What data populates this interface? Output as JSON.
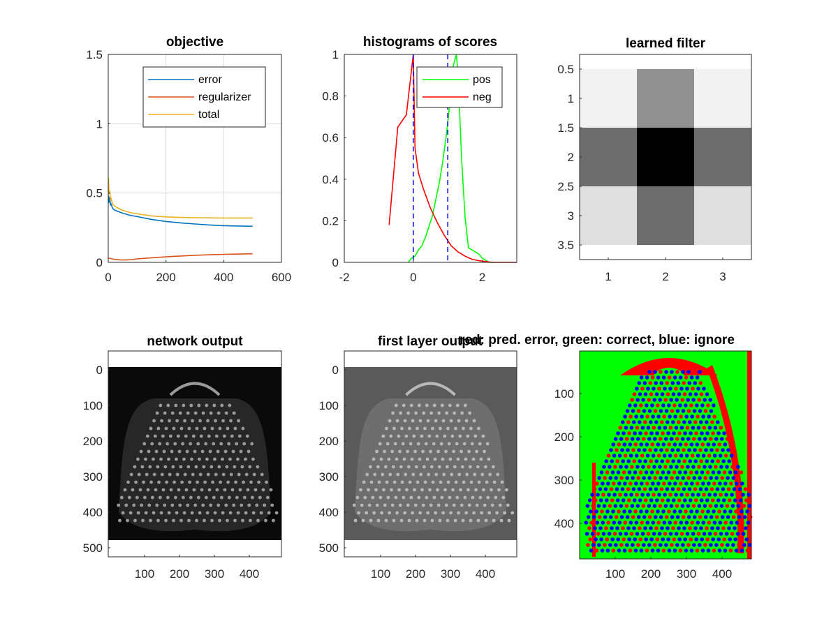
{
  "colors": {
    "error": "#0072BD",
    "regularizer": "#D95319",
    "total": "#EDB120",
    "pos": "#00FF00",
    "neg": "#FF0000",
    "threshold": "#0000FF",
    "axis": "#262626",
    "grid": "#DCDCDC"
  },
  "chart_data": [
    {
      "type": "line",
      "title": "objective",
      "xlabel": "",
      "ylabel": "",
      "xlim": [
        0,
        600
      ],
      "ylim": [
        0,
        1.5
      ],
      "xticks": [
        0,
        200,
        400,
        600
      ],
      "yticks": [
        0,
        0.5,
        1,
        1.5
      ],
      "xticklabels": [
        "0",
        "200",
        "400",
        "600"
      ],
      "yticklabels": [
        "0",
        "0.5",
        "1",
        "1.5"
      ],
      "grid": true,
      "legend": {
        "position": "top-right",
        "entries": [
          "error",
          "regularizer",
          "total"
        ]
      },
      "series": [
        {
          "name": "error",
          "x": [
            1,
            3,
            5,
            8,
            10,
            15,
            20,
            30,
            50,
            75,
            100,
            150,
            200,
            250,
            300,
            350,
            400,
            450,
            500
          ],
          "y": [
            0.48,
            0.43,
            0.47,
            0.41,
            0.42,
            0.39,
            0.38,
            0.37,
            0.355,
            0.34,
            0.33,
            0.31,
            0.295,
            0.285,
            0.277,
            0.27,
            0.265,
            0.262,
            0.26
          ]
        },
        {
          "name": "regularizer",
          "x": [
            1,
            10,
            20,
            40,
            60,
            80,
            100,
            150,
            200,
            250,
            300,
            350,
            400,
            450,
            500
          ],
          "y": [
            0.03,
            0.027,
            0.022,
            0.018,
            0.017,
            0.02,
            0.025,
            0.033,
            0.04,
            0.046,
            0.051,
            0.055,
            0.058,
            0.06,
            0.062
          ]
        },
        {
          "name": "total",
          "x": [
            1,
            3,
            5,
            8,
            10,
            15,
            20,
            30,
            50,
            75,
            100,
            150,
            200,
            250,
            300,
            350,
            400,
            450,
            500
          ],
          "y": [
            0.61,
            0.49,
            0.52,
            0.45,
            0.46,
            0.42,
            0.41,
            0.395,
            0.375,
            0.36,
            0.35,
            0.335,
            0.328,
            0.324,
            0.322,
            0.321,
            0.32,
            0.32,
            0.32
          ]
        }
      ]
    },
    {
      "type": "line",
      "title": "histograms of scores",
      "xlabel": "",
      "ylabel": "",
      "xlim": [
        -2,
        3
      ],
      "ylim": [
        0,
        1
      ],
      "xticks": [
        -2,
        0,
        2
      ],
      "yticks": [
        0,
        0.2,
        0.4,
        0.6,
        0.8,
        1
      ],
      "xticklabels": [
        "-2",
        "0",
        "2"
      ],
      "yticklabels": [
        "0",
        "0.2",
        "0.4",
        "0.6",
        "0.8",
        "1"
      ],
      "grid": false,
      "legend": {
        "position": "top-right",
        "entries": [
          "pos",
          "neg"
        ]
      },
      "thresholds": [
        0,
        1
      ],
      "series": [
        {
          "name": "pos",
          "x": [
            -0.15,
            -0.05,
            0.05,
            0.15,
            0.25,
            0.35,
            0.45,
            0.55,
            0.65,
            0.75,
            0.85,
            0.95,
            1.05,
            1.12,
            1.2,
            1.25,
            1.3,
            1.4,
            1.5,
            1.6,
            1.7,
            1.8,
            1.9,
            2.0,
            2.1,
            2.2,
            2.3
          ],
          "y": [
            0.0,
            0.02,
            0.03,
            0.06,
            0.08,
            0.12,
            0.17,
            0.22,
            0.3,
            0.38,
            0.48,
            0.6,
            0.75,
            0.92,
            0.97,
            1.0,
            0.9,
            0.5,
            0.22,
            0.07,
            0.06,
            0.05,
            0.04,
            0.02,
            0.01,
            0.0,
            0.0
          ]
        },
        {
          "name": "neg",
          "x": [
            -0.7,
            -0.45,
            -0.2,
            0.0,
            0.05,
            0.15,
            0.3,
            0.5,
            0.7,
            0.9,
            1.1,
            1.3,
            1.5,
            1.7,
            1.9,
            2.1,
            2.3,
            2.6,
            3.0
          ],
          "y": [
            0.18,
            0.65,
            0.71,
            1.0,
            0.55,
            0.43,
            0.35,
            0.26,
            0.19,
            0.13,
            0.08,
            0.05,
            0.03,
            0.015,
            0.008,
            0.004,
            0.0,
            0.0,
            0.0
          ]
        }
      ]
    },
    {
      "type": "heatmap",
      "title": "learned filter",
      "xlim": [
        0.5,
        3.5
      ],
      "ylim": [
        0.5,
        3.5
      ],
      "y_display_range": [
        0.25,
        3.75
      ],
      "xticks": [
        1,
        2,
        3
      ],
      "yticks": [
        0.5,
        1,
        1.5,
        2,
        2.5,
        3,
        3.5
      ],
      "xticklabels": [
        "1",
        "2",
        "3"
      ],
      "yticklabels": [
        "0.5",
        "1",
        "1.5",
        "2",
        "2.5",
        "3",
        "3.5"
      ],
      "colormap": "gray",
      "values": [
        [
          1.0,
          0.6,
          1.0
        ],
        [
          0.45,
          0.0,
          0.45
        ],
        [
          0.92,
          0.45,
          0.92
        ]
      ]
    }
  ],
  "images": [
    {
      "title": "network output",
      "xticklabels": [
        "100",
        "200",
        "300",
        "400"
      ],
      "yticklabels": [
        "0",
        "100",
        "200",
        "300",
        "400",
        "500"
      ],
      "background": "#0a0a0a",
      "dot_color": "#9a9a9a"
    },
    {
      "title": "first layer output",
      "xticklabels": [
        "100",
        "200",
        "300",
        "400"
      ],
      "yticklabels": [
        "0",
        "100",
        "200",
        "300",
        "400",
        "500"
      ],
      "background": "#5a5a5a",
      "dot_color": "#b8b8b8"
    },
    {
      "title": "red: pred. error, green: correct, blue: ignore",
      "xticklabels": [
        "100",
        "200",
        "300",
        "400"
      ],
      "yticklabels": [
        "100",
        "200",
        "300",
        "400"
      ],
      "background": "#00FF00",
      "error_color": "#FF0000",
      "ignore_color": "#0000FF"
    }
  ]
}
